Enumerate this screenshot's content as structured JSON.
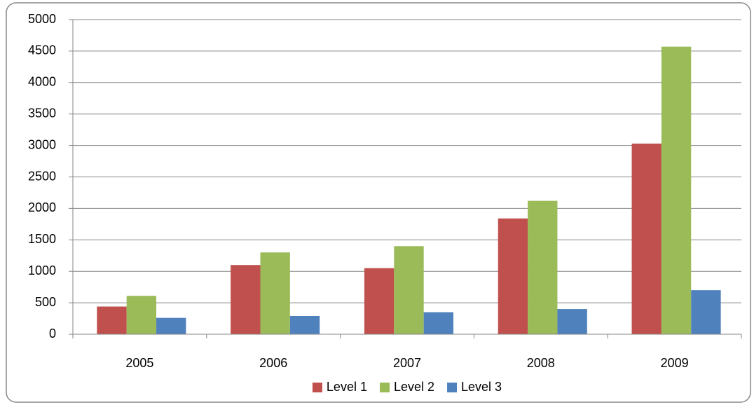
{
  "chart_data": {
    "type": "bar",
    "categories": [
      "2005",
      "2006",
      "2007",
      "2008",
      "2009"
    ],
    "series": [
      {
        "name": "Level 1",
        "color": "#c0504d",
        "values": [
          440,
          1100,
          1050,
          1840,
          3030
        ]
      },
      {
        "name": "Level 2",
        "color": "#9bbb59",
        "values": [
          610,
          1300,
          1400,
          2120,
          4570
        ]
      },
      {
        "name": "Level 3",
        "color": "#4f81bd",
        "values": [
          260,
          290,
          350,
          400,
          700
        ]
      }
    ],
    "ylim": [
      0,
      5000
    ],
    "yticks": [
      0,
      500,
      1000,
      1500,
      2000,
      2500,
      3000,
      3500,
      4000,
      4500,
      5000
    ],
    "grid": true,
    "legend": "bottom"
  }
}
